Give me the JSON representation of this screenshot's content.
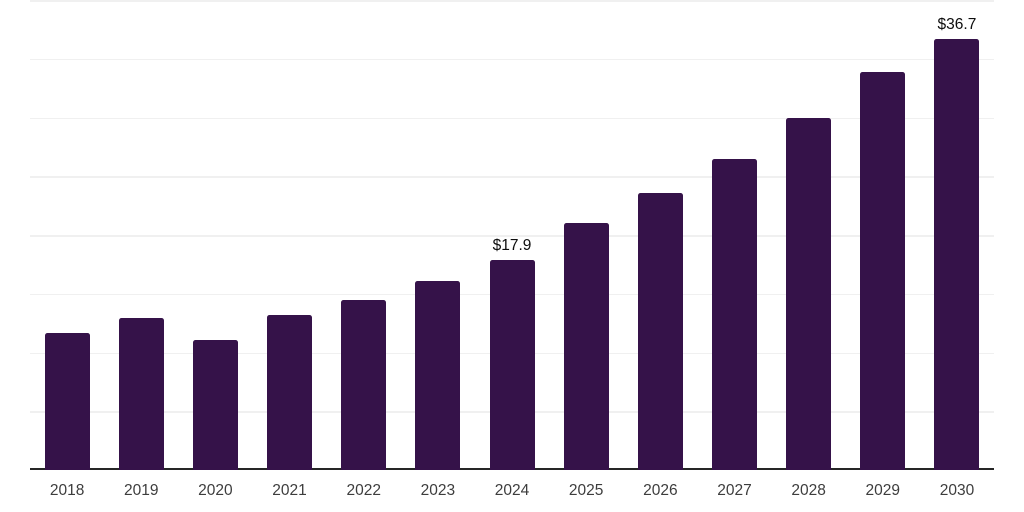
{
  "chart_data": {
    "type": "bar",
    "categories": [
      "2018",
      "2019",
      "2020",
      "2021",
      "2022",
      "2023",
      "2024",
      "2025",
      "2026",
      "2027",
      "2028",
      "2029",
      "2030"
    ],
    "values": [
      11.7,
      12.9,
      11.1,
      13.2,
      14.5,
      16.1,
      17.9,
      21.0,
      23.6,
      26.5,
      30.0,
      33.9,
      36.7
    ],
    "bar_labels": [
      "",
      "",
      "",
      "",
      "",
      "",
      "$17.9",
      "",
      "",
      "",
      "",
      "",
      "$36.7"
    ],
    "ylim": [
      0,
      40
    ],
    "gridline_step": 5,
    "grid": "horizontal-only",
    "legend": "none",
    "y_axis_tick_labels": "none",
    "colors": {
      "bar": "#351249",
      "axis": "#262626",
      "gridline": "#f0f0f0",
      "value_label": "#0d0d0d",
      "tick_label": "#3d3d3d",
      "background": "#ffffff"
    }
  }
}
